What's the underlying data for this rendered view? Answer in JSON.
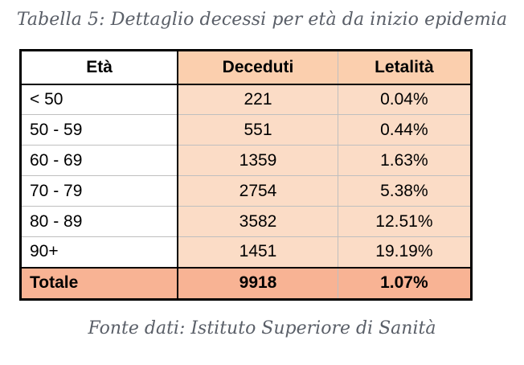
{
  "caption_top": "Tabella 5: Dettaglio decessi per età da inizio epidemia",
  "caption_bottom": "Fonte dati: Istituto Superiore di Sanità",
  "columns": [
    "Età",
    "Deceduti",
    "Letalità"
  ],
  "rows": [
    {
      "age": "< 50",
      "deaths": "221",
      "lethality": "0.04%"
    },
    {
      "age": "50 - 59",
      "deaths": "551",
      "lethality": "0.44%"
    },
    {
      "age": "60 - 69",
      "deaths": "1359",
      "lethality": "1.63%"
    },
    {
      "age": "70 - 79",
      "deaths": "2754",
      "lethality": "5.38%"
    },
    {
      "age": "80 - 89",
      "deaths": "3582",
      "lethality": "12.51%"
    },
    {
      "age": "90+",
      "deaths": "1451",
      "lethality": "19.19%"
    }
  ],
  "total": {
    "label": "Totale",
    "deaths": "9918",
    "lethality": "1.07%"
  },
  "colors": {
    "header_fill": "#fbcfae",
    "cell_fill": "#fbdcc6",
    "total_fill": "#f8b394",
    "caption_text": "#5a5f68"
  }
}
